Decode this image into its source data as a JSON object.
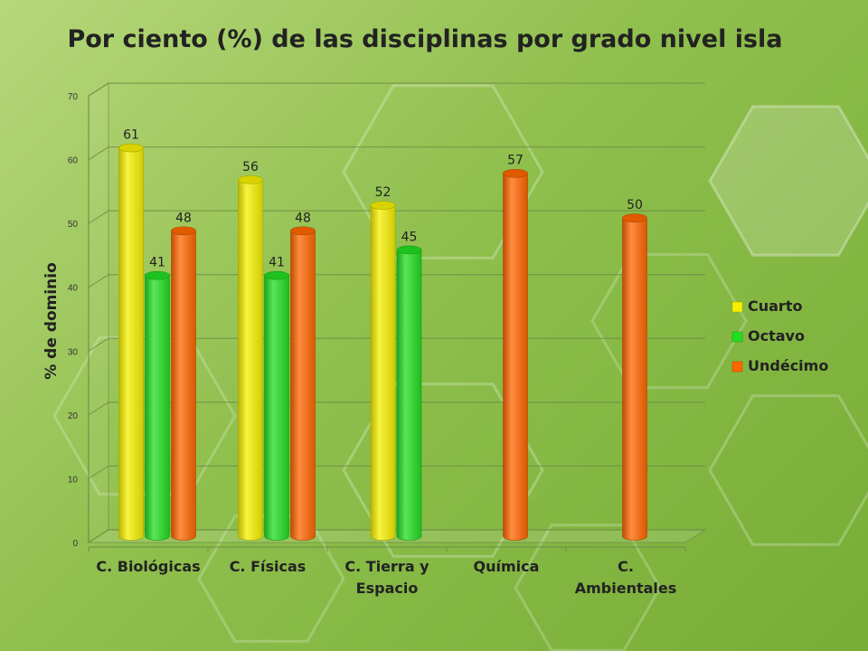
{
  "chart_data": {
    "type": "bar",
    "title": "Por ciento (%) de las disciplinas por grado nivel isla",
    "xlabel": "",
    "ylabel": "% de dominio",
    "ylim": [
      0,
      70
    ],
    "yticks": [
      0,
      10,
      20,
      30,
      40,
      50,
      60,
      70
    ],
    "categories": [
      [
        "C. Biológicas"
      ],
      [
        "C. Físicas"
      ],
      [
        "C. Tierra y",
        "Espacio"
      ],
      [
        "Química"
      ],
      [
        "C.",
        "Ambientales"
      ]
    ],
    "series": [
      {
        "name": "Cuarto",
        "color": "#f5f000",
        "values": [
          61,
          56,
          52,
          null,
          null
        ]
      },
      {
        "name": "Octavo",
        "color": "#22dd22",
        "values": [
          41,
          41,
          45,
          null,
          null
        ]
      },
      {
        "name": "Undécimo",
        "color": "#ff6600",
        "values": [
          48,
          48,
          null,
          57,
          50
        ]
      }
    ],
    "legend_position": "right",
    "grid": true
  }
}
